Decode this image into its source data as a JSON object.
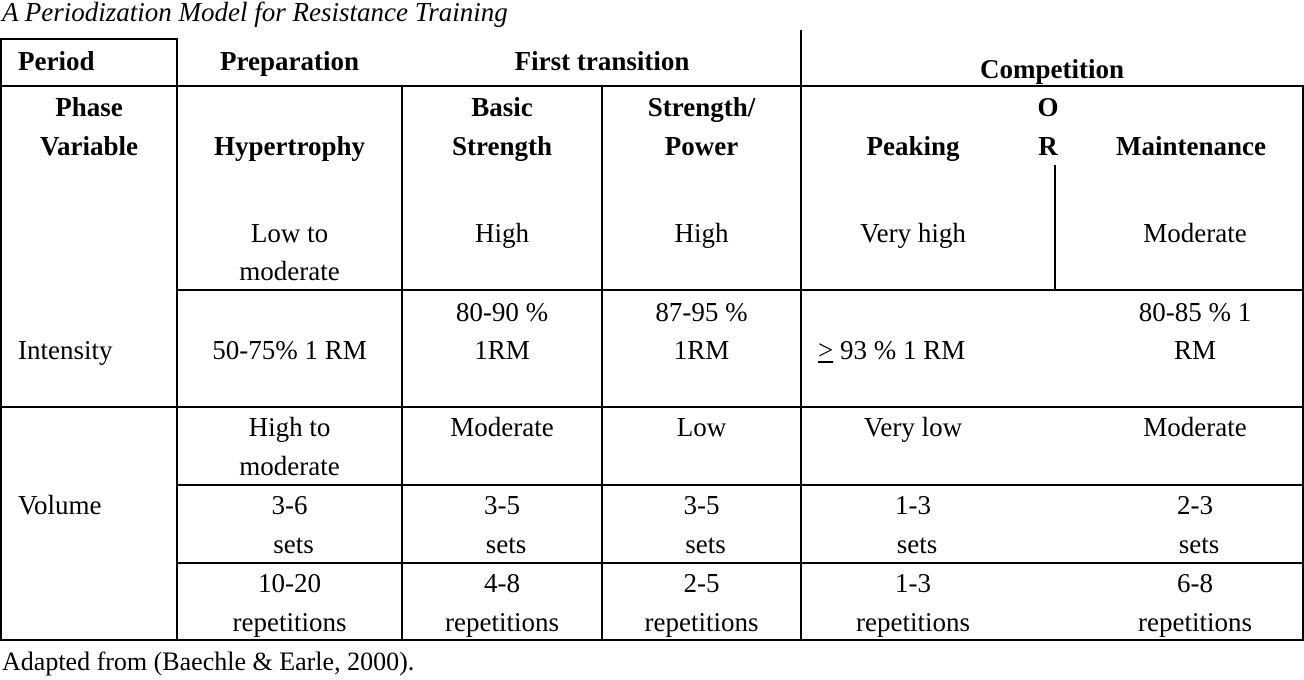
{
  "caption": "A Periodization Model for Resistance Training",
  "footnote": "Adapted from  (Baechle & Earle, 2000).",
  "header": {
    "period": "Period",
    "preparation": "Preparation",
    "first_transition": "First transition",
    "competition": "Competition"
  },
  "subheader": {
    "phase": "Phase",
    "variable": "Variable",
    "hypertrophy": "Hypertrophy",
    "basic_1": "Basic",
    "basic_2": "Strength",
    "sp_1": "Strength/",
    "sp_2": "Power",
    "peaking": "Peaking",
    "or_o": "O",
    "or_r": "R",
    "maintenance": "Maintenance"
  },
  "level_row": {
    "hypertrophy_1": "Low to",
    "hypertrophy_2": "moderate",
    "basic": "High",
    "strength_power": "High",
    "peaking": "Very high",
    "maintenance": "Moderate"
  },
  "intensity": {
    "label": "Intensity",
    "hypertrophy": "50-75% 1 RM",
    "basic_1": "80-90 %",
    "basic_2": "1RM",
    "sp_1": "87-95 %",
    "sp_2": "1RM",
    "peaking_symbol": ">",
    "peaking_rest": " 93 % 1 RM",
    "maintenance_1": "80-85 % 1",
    "maintenance_2": "RM"
  },
  "volume": {
    "label": "Volume",
    "level": {
      "hypertrophy_1": "High to",
      "hypertrophy_2": "moderate",
      "basic": "Moderate",
      "strength_power": "Low",
      "peaking": "Very low",
      "maintenance": "Moderate"
    },
    "sets": {
      "hypertrophy_1": "3-6",
      "hypertrophy_2": "sets",
      "basic_1": "3-5",
      "basic_2": "sets",
      "sp_1": "3-5",
      "sp_2": "sets",
      "peaking_1": "1-3",
      "peaking_2": "sets",
      "maintenance_1": "2-3",
      "maintenance_2": "sets"
    },
    "reps": {
      "hypertrophy_1": "10-20",
      "hypertrophy_2": "repetitions",
      "basic_1": "4-8",
      "basic_2": "repetitions",
      "sp_1": "2-5",
      "sp_2": "repetitions",
      "peaking_1": "1-3",
      "peaking_2": "repetitions",
      "maintenance_1": "6-8",
      "maintenance_2": "repetitions"
    }
  }
}
